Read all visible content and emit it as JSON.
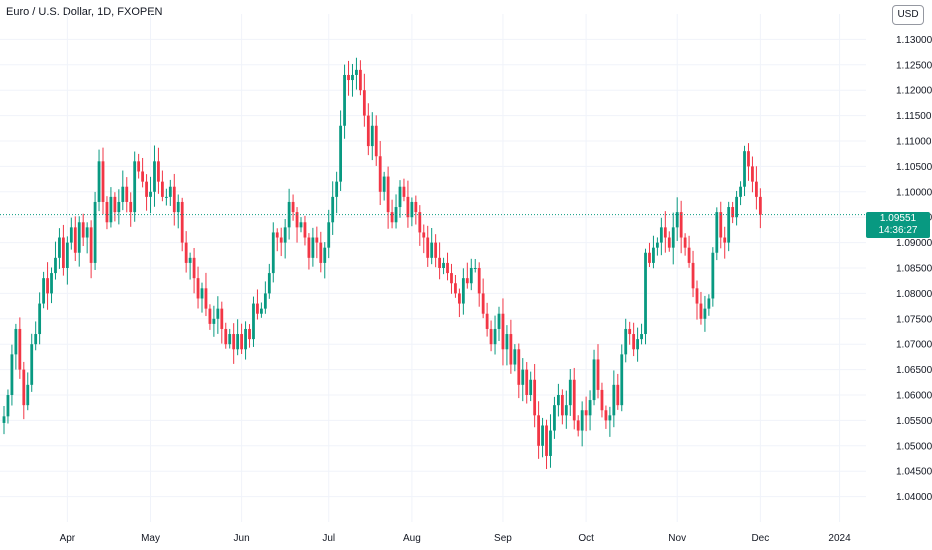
{
  "header": {
    "title": "Euro / U.S. Dollar, 1D, FXOPEN",
    "currency_button": "USD"
  },
  "price_tag": {
    "price": "1.09551",
    "countdown": "14:36:27"
  },
  "colors": {
    "up": "#089981",
    "down": "#F23645",
    "grid": "#F0F3FA",
    "last_line": "#089981"
  },
  "chart_data": {
    "type": "candlestick",
    "y_axis": {
      "min": 1.035,
      "max": 1.135,
      "ticks": [
        "1.04000",
        "1.04500",
        "1.05000",
        "1.05500",
        "1.06000",
        "1.06500",
        "1.07000",
        "1.07500",
        "1.08000",
        "1.08500",
        "1.09000",
        "1.09500",
        "1.10000",
        "1.10500",
        "1.11000",
        "1.11500",
        "1.12000",
        "1.12500",
        "1.13000"
      ]
    },
    "x_axis": {
      "labels": [
        {
          "label": "Apr",
          "index": 16
        },
        {
          "label": "May",
          "index": 37
        },
        {
          "label": "Jun",
          "index": 60
        },
        {
          "label": "Jul",
          "index": 82
        },
        {
          "label": "Aug",
          "index": 103
        },
        {
          "label": "Sep",
          "index": 126
        },
        {
          "label": "Oct",
          "index": 147
        },
        {
          "label": "Nov",
          "index": 170
        },
        {
          "label": "Dec",
          "index": 191
        },
        {
          "label": "2024",
          "index": 211
        }
      ]
    },
    "last_price": 1.09551,
    "candles_close": [
      1.0558,
      1.06,
      1.068,
      1.073,
      1.065,
      1.058,
      1.062,
      1.07,
      1.072,
      1.078,
      1.083,
      1.08,
      1.084,
      1.087,
      1.091,
      1.085,
      1.09,
      1.093,
      1.088,
      1.094,
      1.091,
      1.093,
      1.086,
      1.098,
      1.106,
      1.098,
      1.094,
      1.099,
      1.096,
      1.098,
      1.101,
      1.098,
      1.096,
      1.106,
      1.104,
      1.102,
      1.099,
      1.1,
      1.106,
      1.102,
      1.099,
      1.099,
      1.101,
      1.096,
      1.098,
      1.09,
      1.086,
      1.087,
      1.083,
      1.079,
      1.081,
      1.077,
      1.074,
      1.075,
      1.077,
      1.073,
      1.07,
      1.072,
      1.069,
      1.072,
      1.069,
      1.073,
      1.071,
      1.078,
      1.076,
      1.077,
      1.08,
      1.084,
      1.092,
      1.091,
      1.09,
      1.093,
      1.098,
      1.096,
      1.093,
      1.094,
      1.091,
      1.087,
      1.091,
      1.09,
      1.086,
      1.089,
      1.094,
      1.099,
      1.102,
      1.113,
      1.123,
      1.122,
      1.123,
      1.124,
      1.12,
      1.115,
      1.109,
      1.113,
      1.107,
      1.1,
      1.103,
      1.096,
      1.094,
      1.097,
      1.101,
      1.099,
      1.095,
      1.098,
      1.096,
      1.092,
      1.091,
      1.087,
      1.09,
      1.087,
      1.085,
      1.086,
      1.084,
      1.082,
      1.08,
      1.078,
      1.083,
      1.082,
      1.085,
      1.085,
      1.08,
      1.076,
      1.073,
      1.07,
      1.073,
      1.076,
      1.069,
      1.072,
      1.066,
      1.069,
      1.062,
      1.065,
      1.06,
      1.063,
      1.056,
      1.05,
      1.054,
      1.048,
      1.053,
      1.058,
      1.06,
      1.056,
      1.058,
      1.063,
      1.055,
      1.053,
      1.057,
      1.056,
      1.059,
      1.067,
      1.061,
      1.057,
      1.055,
      1.056,
      1.062,
      1.058,
      1.068,
      1.073,
      1.072,
      1.069,
      1.071,
      1.072,
      1.088,
      1.086,
      1.089,
      1.09,
      1.093,
      1.091,
      1.089,
      1.093,
      1.096,
      1.091,
      1.089,
      1.086,
      1.081,
      1.078,
      1.075,
      1.077,
      1.079,
      1.088,
      1.096,
      1.091,
      1.09,
      1.097,
      1.095,
      1.099,
      1.101,
      1.108,
      1.105,
      1.102,
      1.099,
      1.0955
    ]
  }
}
